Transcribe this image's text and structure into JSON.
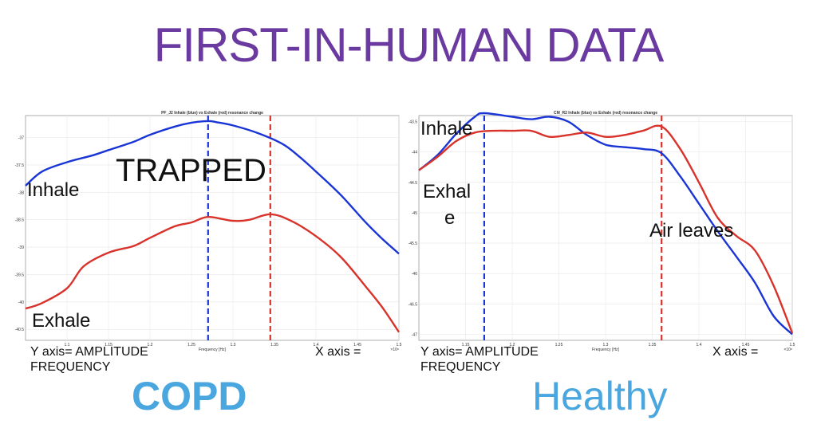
{
  "page": {
    "title": "FIRST-IN-HUMAN DATA",
    "left_label": "COPD",
    "right_label": "Healthy",
    "colors": {
      "title": "#6b3aa0",
      "labels": "#4aa6de",
      "inhale": "#1a35d6",
      "exhale": "#d8322b"
    }
  },
  "annotations": {
    "left": {
      "inhale": "Inhale",
      "exhale": "Exhale",
      "trapped": "TRAPPED",
      "y_axis_line1": "Y axis= AMPLITUDE",
      "y_axis_line2": "FREQUENCY",
      "x_axis": "X axis ="
    },
    "right": {
      "inhale": "Inhale",
      "exhale_line1": "Exhal",
      "exhale_line2": "e",
      "air_leaves": "Air leaves",
      "y_axis_line1": "Y axis= AMPLITUDE",
      "y_axis_line2": "FREQUENCY",
      "x_axis": "X axis ="
    }
  },
  "chart_data": [
    {
      "type": "line",
      "title": "PF_J2 Inhale (blue) vs Exhale (red) resonance change",
      "xlabel": "Frequency [Hz]",
      "x_exponent": "×10⁸",
      "xlim": [
        1.05,
        1.5
      ],
      "ylim": [
        -40.7,
        -36.6
      ],
      "xticks": [
        1.1,
        1.15,
        1.2,
        1.25,
        1.3,
        1.35,
        1.4,
        1.45,
        1.5
      ],
      "yticks": [
        -37,
        -37.5,
        -38,
        -38.5,
        -39,
        -39.5,
        -40,
        -40.5
      ],
      "vlines": [
        1.27,
        1.345
      ],
      "series": [
        {
          "name": "Inhale (blue)",
          "x": [
            1.05,
            1.07,
            1.1,
            1.13,
            1.15,
            1.18,
            1.2,
            1.23,
            1.25,
            1.27,
            1.28,
            1.3,
            1.33,
            1.36,
            1.38,
            1.4,
            1.43,
            1.46,
            1.48,
            1.5
          ],
          "y": [
            -37.88,
            -37.62,
            -37.45,
            -37.33,
            -37.23,
            -37.08,
            -36.95,
            -36.8,
            -36.73,
            -36.7,
            -36.72,
            -36.78,
            -36.92,
            -37.12,
            -37.35,
            -37.62,
            -38.05,
            -38.55,
            -38.85,
            -39.12
          ]
        },
        {
          "name": "Exhale (red)",
          "x": [
            1.05,
            1.07,
            1.1,
            1.12,
            1.15,
            1.18,
            1.2,
            1.23,
            1.25,
            1.27,
            1.3,
            1.32,
            1.345,
            1.37,
            1.4,
            1.43,
            1.46,
            1.48,
            1.5
          ],
          "y": [
            -40.12,
            -40.02,
            -39.75,
            -39.35,
            -39.1,
            -38.98,
            -38.83,
            -38.62,
            -38.55,
            -38.45,
            -38.52,
            -38.5,
            -38.4,
            -38.52,
            -38.8,
            -39.18,
            -39.72,
            -40.1,
            -40.55
          ]
        }
      ]
    },
    {
      "type": "line",
      "title": "CM_R2 Inhale (blue) vs Exhale (red) resonance change",
      "xlabel": "Frequency [Hz]",
      "x_exponent": "×10⁸",
      "xlim": [
        1.1,
        1.5
      ],
      "ylim": [
        -47.1,
        -43.4
      ],
      "xticks": [
        1.15,
        1.2,
        1.25,
        1.3,
        1.35,
        1.4,
        1.45,
        1.5
      ],
      "yticks": [
        -43.5,
        -44,
        -44.5,
        -45,
        -45.5,
        -46,
        -46.5,
        -47
      ],
      "vlines": [
        1.17,
        1.36
      ],
      "series": [
        {
          "name": "Inhale (blue)",
          "x": [
            1.1,
            1.12,
            1.14,
            1.16,
            1.17,
            1.2,
            1.22,
            1.24,
            1.26,
            1.28,
            1.3,
            1.32,
            1.34,
            1.36,
            1.38,
            1.4,
            1.42,
            1.44,
            1.46,
            1.48,
            1.5
          ],
          "y": [
            -44.3,
            -44.05,
            -43.7,
            -43.42,
            -43.36,
            -43.42,
            -43.46,
            -43.42,
            -43.5,
            -43.72,
            -43.88,
            -43.92,
            -43.95,
            -44.02,
            -44.4,
            -44.85,
            -45.3,
            -45.72,
            -46.15,
            -46.7,
            -47.0
          ]
        },
        {
          "name": "Exhale (red)",
          "x": [
            1.1,
            1.12,
            1.14,
            1.16,
            1.18,
            1.2,
            1.22,
            1.24,
            1.26,
            1.28,
            1.3,
            1.32,
            1.34,
            1.36,
            1.38,
            1.4,
            1.42,
            1.44,
            1.46,
            1.48,
            1.5
          ],
          "y": [
            -44.3,
            -44.08,
            -43.82,
            -43.68,
            -43.65,
            -43.65,
            -43.65,
            -43.75,
            -43.72,
            -43.68,
            -43.75,
            -43.72,
            -43.65,
            -43.58,
            -43.95,
            -44.5,
            -45.08,
            -45.38,
            -45.62,
            -46.2,
            -46.98
          ]
        }
      ]
    }
  ]
}
